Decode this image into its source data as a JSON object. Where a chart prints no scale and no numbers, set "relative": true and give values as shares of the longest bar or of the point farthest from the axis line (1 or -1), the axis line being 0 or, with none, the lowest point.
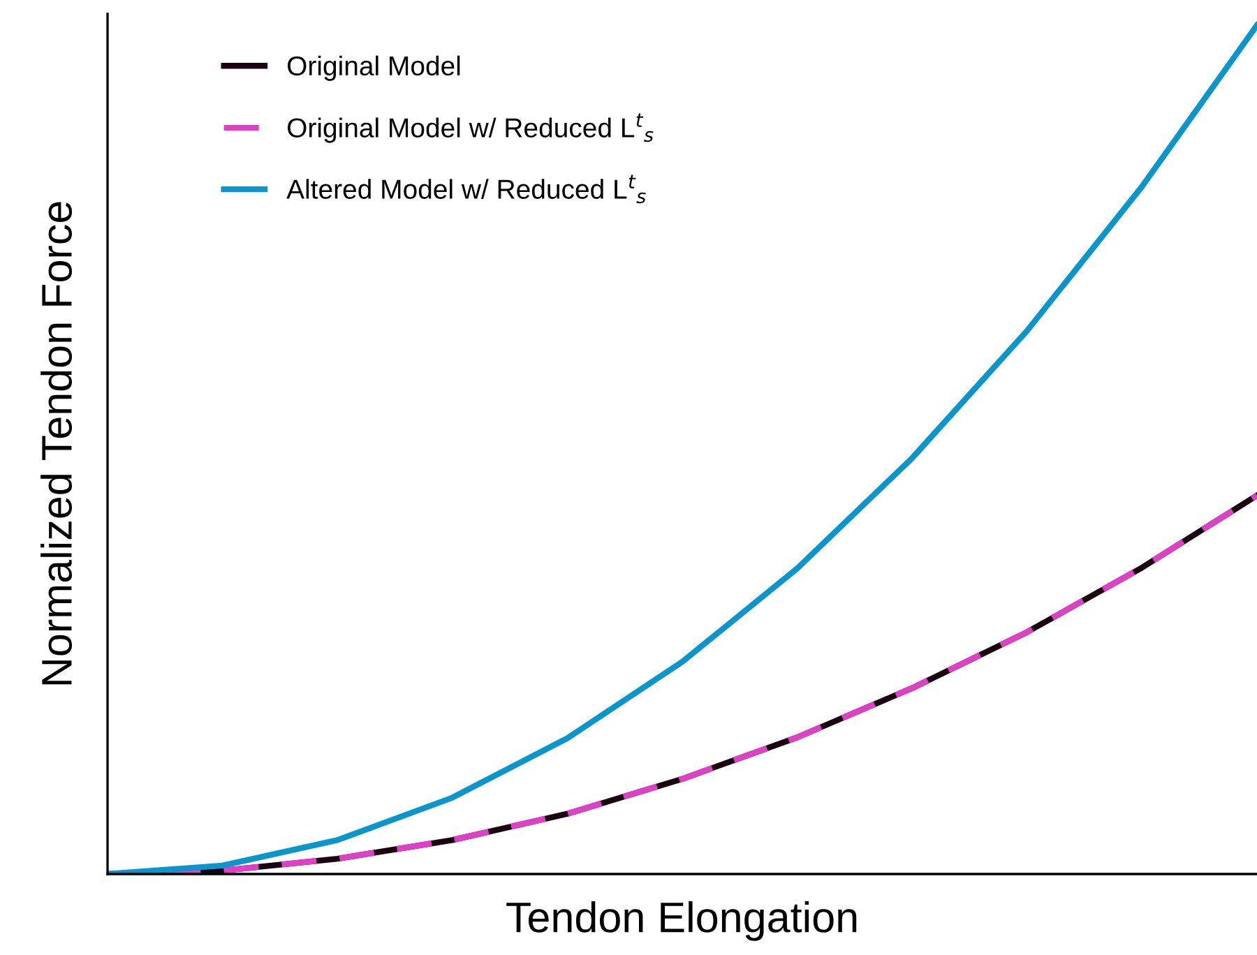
{
  "chart_data": {
    "type": "line",
    "relative": true,
    "xlabel": "Tendon Elongation",
    "ylabel": "Normalized Tendon Force",
    "categories": [
      null,
      null,
      null,
      null,
      null,
      null,
      null,
      null,
      null,
      null,
      null
    ],
    "legend": "top left",
    "grid": false,
    "series": [
      {
        "name": "Original Model",
        "color": "#1a0010",
        "values": [
          0,
          0.004,
          0.018,
          0.04,
          0.071,
          0.112,
          0.161,
          0.219,
          0.285,
          0.361,
          0.446
        ]
      },
      {
        "name": "Original Model w/ Reduced L$^{t}$$_{s}$",
        "color": "#e040c8",
        "line_style": "dashed",
        "values": [
          0,
          0.004,
          0.018,
          0.04,
          0.071,
          0.112,
          0.161,
          0.219,
          0.285,
          0.361,
          0.446
        ]
      },
      {
        "name": "Altered Model w/ Reduced L$^{t}$$_{s}$",
        "color": "#0a96cc",
        "values": [
          0,
          0.01,
          0.04,
          0.09,
          0.16,
          0.25,
          0.36,
          0.49,
          0.64,
          0.81,
          1
        ]
      }
    ]
  }
}
